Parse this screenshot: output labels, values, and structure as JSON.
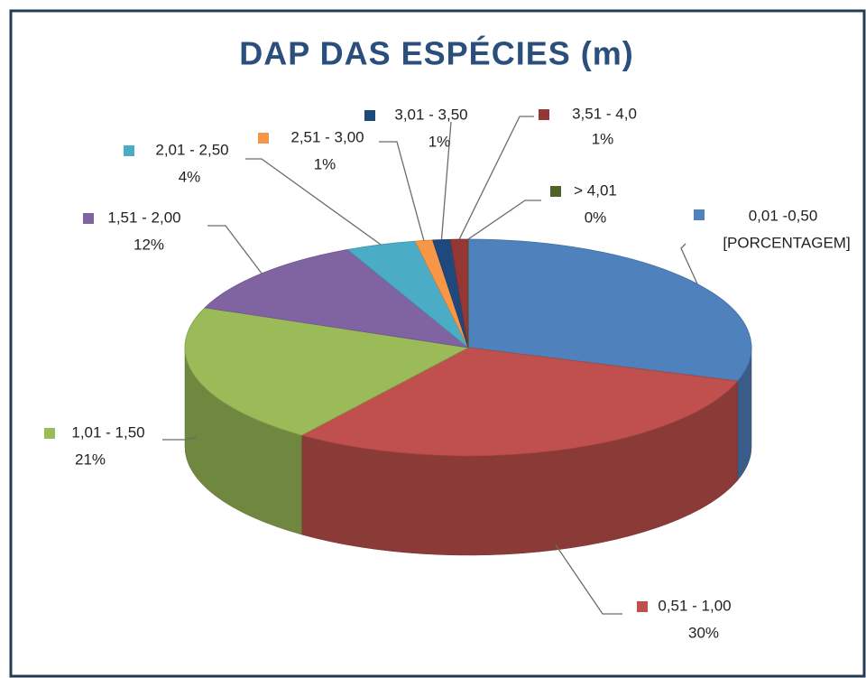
{
  "chart_data": {
    "type": "pie",
    "title": "DAP DAS ESPÉCIES (m)",
    "categories": [
      "0,01 -0,50",
      "0,51 - 1,00",
      "1,01 - 1,50",
      "1,51 - 2,00",
      "2,01 - 2,50",
      "2,51 - 3,00",
      "3,01 - 3,50",
      "3,51 - 4,0",
      "> 4,01"
    ],
    "values": [
      30,
      30,
      21,
      12,
      4,
      1,
      1,
      1,
      0
    ],
    "value_labels": [
      "[PORCENTAGEM]",
      "30%",
      "21%",
      "12%",
      "4%",
      "1%",
      "1%",
      "1%",
      "0%"
    ],
    "colors": [
      "#4f81bd",
      "#c0504d",
      "#9bbb59",
      "#8064a2",
      "#4bacc6",
      "#f79646",
      "#1f497d",
      "#953735",
      "#4f6228"
    ]
  }
}
